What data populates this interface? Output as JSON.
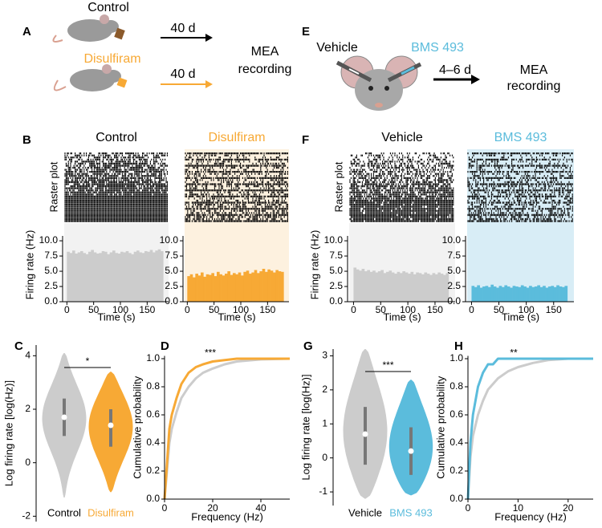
{
  "panel_labels": [
    "A",
    "B",
    "C",
    "D",
    "E",
    "F",
    "G",
    "H"
  ],
  "diagram_a": {
    "control_label": "Control",
    "treatment_label": "Disulfiram",
    "duration_1": "40 d",
    "duration_2": "40 d",
    "outcome": [
      "MEA",
      "recording"
    ]
  },
  "diagram_e": {
    "left_label": "Vehicle",
    "right_label": "BMS 493",
    "duration": "4–6 d",
    "outcome": [
      "MEA",
      "recording"
    ]
  },
  "chart_data": [
    {
      "type": "histogram",
      "title": "Control",
      "title_color": "#000000",
      "raster_label": "Raster plot",
      "ylabel": "Firing rate (Hz)",
      "xlabel": "Time (s)",
      "color": "#cccccc",
      "bins": [
        0,
        5,
        10,
        15,
        20,
        25,
        30,
        35,
        40,
        45,
        50,
        55,
        60,
        65,
        70,
        75,
        80,
        85,
        90,
        95,
        100,
        105,
        110,
        115,
        120,
        125,
        130,
        135,
        140,
        145,
        150,
        155,
        160,
        165,
        170,
        175,
        180
      ],
      "values": [
        8.2,
        8.0,
        8.4,
        7.9,
        8.1,
        8.3,
        8.0,
        7.8,
        8.2,
        8.5,
        8.1,
        7.9,
        8.0,
        8.3,
        8.2,
        7.8,
        8.1,
        8.4,
        8.0,
        7.9,
        8.2,
        8.1,
        8.3,
        8.0,
        7.8,
        8.2,
        8.4,
        8.1,
        8.0,
        8.3,
        8.2,
        8.5,
        8.1,
        8.4,
        8.6,
        8.3
      ],
      "xlim": [
        -5,
        190
      ],
      "xticks": [
        0,
        50,
        100,
        150
      ],
      "ylim": [
        0,
        10.8
      ],
      "yticks": [
        {
          "value": 0,
          "label": "0.0"
        },
        2.5,
        {
          "value": 5,
          "label": "5.0"
        },
        7.5,
        {
          "value": 10,
          "label": "10.0"
        }
      ]
    },
    {
      "type": "histogram",
      "title": "Disulfiram",
      "title_color": "#f7a935",
      "xlabel": "Time (s)",
      "color": "#f7a935",
      "bins": [
        0,
        5,
        10,
        15,
        20,
        25,
        30,
        35,
        40,
        45,
        50,
        55,
        60,
        65,
        70,
        75,
        80,
        85,
        90,
        95,
        100,
        105,
        110,
        115,
        120,
        125,
        130,
        135,
        140,
        145,
        150,
        155,
        160,
        165,
        170,
        175,
        180
      ],
      "values": [
        4.2,
        4.5,
        4.0,
        4.6,
        4.3,
        4.8,
        4.1,
        4.5,
        4.4,
        4.7,
        4.2,
        4.9,
        4.5,
        4.3,
        4.6,
        5.0,
        4.4,
        4.7,
        4.5,
        4.8,
        4.3,
        4.9,
        5.1,
        4.6,
        4.8,
        5.2,
        4.7,
        5.0,
        5.4,
        4.9,
        5.3,
        5.1,
        4.8,
        5.2,
        5.0,
        4.9
      ],
      "xlim": [
        -5,
        190
      ],
      "xticks": [
        0,
        50,
        100,
        150
      ],
      "ylim": [
        0,
        10.8
      ],
      "yticks": [
        {
          "value": 0,
          "label": "0.0"
        },
        2.5,
        {
          "value": 5,
          "label": "5.0"
        },
        7.5,
        {
          "value": 10,
          "label": "10.0"
        }
      ]
    },
    {
      "type": "histogram",
      "title": "Vehicle",
      "title_color": "#000000",
      "raster_label": "Raster plot",
      "ylabel": "Firing rate (Hz)",
      "xlabel": "Time (s)",
      "color": "#cccccc",
      "bins": [
        0,
        5,
        10,
        15,
        20,
        25,
        30,
        35,
        40,
        45,
        50,
        55,
        60,
        65,
        70,
        75,
        80,
        85,
        90,
        95,
        100,
        105,
        110,
        115,
        120,
        125,
        130,
        135,
        140,
        145,
        150,
        155,
        160,
        165,
        170,
        175
      ],
      "values": [
        5.6,
        5.3,
        5.1,
        5.4,
        5.0,
        5.2,
        4.9,
        5.1,
        4.8,
        5.0,
        5.2,
        4.7,
        4.9,
        5.1,
        4.8,
        4.6,
        4.9,
        4.7,
        5.0,
        4.8,
        4.6,
        4.9,
        4.5,
        4.8,
        4.7,
        4.5,
        4.8,
        4.6,
        4.4,
        4.7,
        4.5,
        4.8,
        4.6,
        4.4,
        4.7
      ],
      "xlim": [
        -8,
        187
      ],
      "xticks": [
        0,
        50,
        100,
        150
      ],
      "ylim": [
        0,
        10.8
      ],
      "yticks": [
        {
          "value": 0,
          "label": "0.0"
        },
        2.5,
        {
          "value": 5,
          "label": "5.0"
        },
        7.5,
        {
          "value": 10,
          "label": "10.0"
        }
      ]
    },
    {
      "type": "histogram",
      "title": "BMS 493",
      "title_color": "#5bbcdc",
      "xlabel": "Time (s)",
      "color": "#5bbcdc",
      "bins": [
        0,
        5,
        10,
        15,
        20,
        25,
        30,
        35,
        40,
        45,
        50,
        55,
        60,
        65,
        70,
        75,
        80,
        85,
        90,
        95,
        100,
        105,
        110,
        115,
        120,
        125,
        130,
        135,
        140,
        145,
        150,
        155,
        160,
        165,
        170,
        175
      ],
      "values": [
        2.6,
        2.4,
        2.7,
        2.3,
        2.5,
        2.6,
        2.4,
        2.8,
        2.5,
        2.3,
        2.6,
        2.4,
        2.7,
        2.5,
        2.3,
        2.6,
        2.5,
        2.4,
        2.7,
        2.5,
        2.3,
        2.6,
        2.4,
        2.5,
        2.7,
        2.4,
        2.6,
        2.3,
        2.5,
        2.6,
        2.4,
        2.7,
        2.5,
        2.4,
        2.6
      ],
      "xlim": [
        -8,
        187
      ],
      "xticks": [
        0,
        50,
        100,
        150
      ],
      "ylim": [
        0,
        10.8
      ],
      "yticks": [
        {
          "value": 0,
          "label": "0.0"
        },
        2.5,
        {
          "value": 5,
          "label": "5.0"
        },
        7.5,
        {
          "value": 10,
          "label": "10.0"
        }
      ]
    },
    {
      "type": "violin",
      "ylabel": "Log firing rate [log(Hz)]",
      "categories": [
        "Control",
        "Disulfiram"
      ],
      "colors": [
        "#cccccc",
        "#f7a935"
      ],
      "label_colors": [
        "#000000",
        "#f7a935"
      ],
      "min": [
        -1.3,
        -1.1
      ],
      "q1": [
        1.0,
        0.6
      ],
      "median": [
        1.7,
        1.4
      ],
      "q3": [
        2.4,
        2.0
      ],
      "max": [
        4.1,
        3.4
      ],
      "annotation": "*",
      "ylim": [
        -2.2,
        4.4
      ],
      "yticks": [
        -2,
        0,
        2,
        4
      ]
    },
    {
      "type": "cdf",
      "ylabel": "Cumulative probability",
      "xlabel": "Frequency (Hz)",
      "annotation": "***",
      "series": [
        {
          "name": "Control",
          "color": "#cccccc",
          "x": [
            0,
            1,
            2,
            3,
            5,
            7,
            10,
            13,
            16,
            20,
            25,
            30,
            40,
            52
          ],
          "values": [
            0,
            0.2,
            0.4,
            0.5,
            0.62,
            0.72,
            0.8,
            0.86,
            0.9,
            0.93,
            0.96,
            0.98,
            0.995,
            1
          ]
        },
        {
          "name": "Disulfiram",
          "color": "#f7a935",
          "x": [
            0,
            1,
            2,
            3,
            5,
            7,
            10,
            13,
            16,
            20,
            25,
            30,
            52
          ],
          "values": [
            0,
            0.25,
            0.5,
            0.6,
            0.72,
            0.82,
            0.9,
            0.94,
            0.96,
            0.98,
            0.99,
            1,
            1
          ]
        }
      ],
      "xlim": [
        0,
        52
      ],
      "xticks": [
        0,
        20,
        40
      ],
      "ylim": [
        0,
        1.02
      ],
      "yticks": [
        {
          "value": 0,
          "label": "0.0"
        },
        0.2,
        0.4,
        0.6,
        0.8,
        {
          "value": 1,
          "label": "1.0"
        }
      ]
    },
    {
      "type": "violin",
      "ylabel": "Log firing rate [log(Hz)]",
      "categories": [
        "Vehicle",
        "BMS 493"
      ],
      "colors": [
        "#cccccc",
        "#5bbcdc"
      ],
      "label_colors": [
        "#000000",
        "#5bbcdc"
      ],
      "min": [
        -1.2,
        -1.1
      ],
      "q1": [
        -0.2,
        -0.5
      ],
      "median": [
        0.7,
        0.2
      ],
      "q3": [
        1.5,
        0.9
      ],
      "max": [
        3.2,
        2.3
      ],
      "annotation": "***",
      "ylim": [
        -1.4,
        3.2
      ],
      "yticks": [
        -1,
        0,
        1,
        2,
        3
      ]
    },
    {
      "type": "cdf",
      "ylabel": "Cumulative probability",
      "xlabel": "Frequency (Hz)",
      "annotation": "**",
      "series": [
        {
          "name": "Vehicle",
          "color": "#cccccc",
          "x": [
            0,
            0.5,
            1,
            2,
            3,
            4,
            6,
            8,
            10,
            13,
            16,
            20,
            25
          ],
          "values": [
            0,
            0.3,
            0.45,
            0.6,
            0.7,
            0.78,
            0.86,
            0.91,
            0.94,
            0.97,
            0.99,
            1,
            1
          ]
        },
        {
          "name": "BMS 493",
          "color": "#5bbcdc",
          "x": [
            0,
            0.5,
            1,
            2,
            3,
            4,
            5,
            6,
            8,
            10,
            25
          ],
          "values": [
            0,
            0.4,
            0.6,
            0.8,
            0.9,
            0.96,
            0.96,
            1,
            1,
            1,
            1
          ]
        }
      ],
      "xlim": [
        0,
        25
      ],
      "xticks": [
        0,
        10,
        20
      ],
      "ylim": [
        0,
        1.02
      ],
      "yticks": [
        {
          "value": 0,
          "label": "0.0"
        },
        0.2,
        0.4,
        0.6,
        0.8,
        {
          "value": 1,
          "label": "1.0"
        }
      ]
    }
  ]
}
